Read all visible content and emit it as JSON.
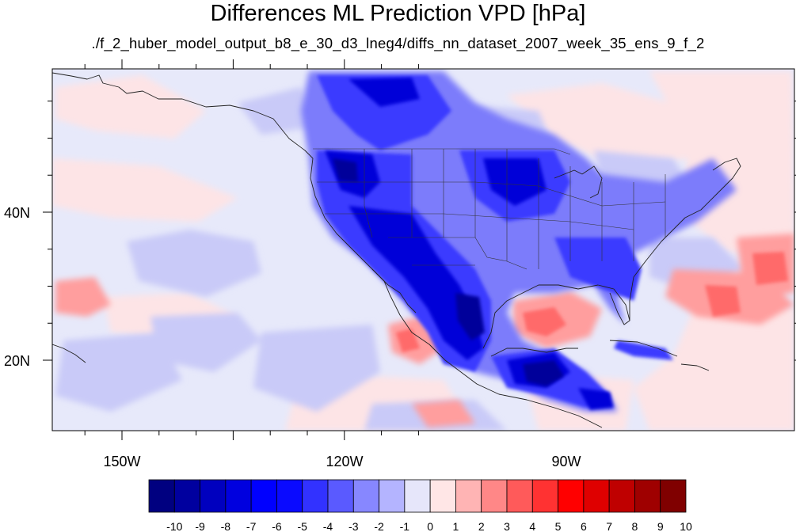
{
  "title": "Differences ML Prediction VPD [hPa]",
  "subtitle": "./f_2_huber_model_output_b8_e_30_d3_lneg4/diffs_nn_dataset_2007_week_35_ens_9_f_2",
  "map": {
    "projection": "cylindrical-equidistant",
    "lon_range": [
      -160,
      -62
    ],
    "lat_range": [
      10,
      59
    ],
    "x_ticks": [
      "150W",
      "120W",
      "90W"
    ],
    "y_ticks": [
      "40N",
      "20N"
    ],
    "background_color": "#e7e9fa",
    "coastline_color": "#222222"
  },
  "colorbar": {
    "labels": [
      "-10",
      "-9",
      "-8",
      "-7",
      "-6",
      "-5",
      "-4",
      "-3",
      "-2",
      "-1",
      "0",
      "1",
      "2",
      "3",
      "4",
      "5",
      "6",
      "7",
      "8",
      "9",
      "10"
    ],
    "colors": [
      "#000080",
      "#00009f",
      "#0000bf",
      "#0000df",
      "#0000ff",
      "#0a0aff",
      "#3232ff",
      "#5a5aff",
      "#8787ff",
      "#b4b4ff",
      "#e6e6fa",
      "#ffe6e6",
      "#ffb4b4",
      "#ff8787",
      "#ff5a5a",
      "#ff3232",
      "#ff0000",
      "#df0000",
      "#bf0000",
      "#9f0000",
      "#800000"
    ]
  }
}
